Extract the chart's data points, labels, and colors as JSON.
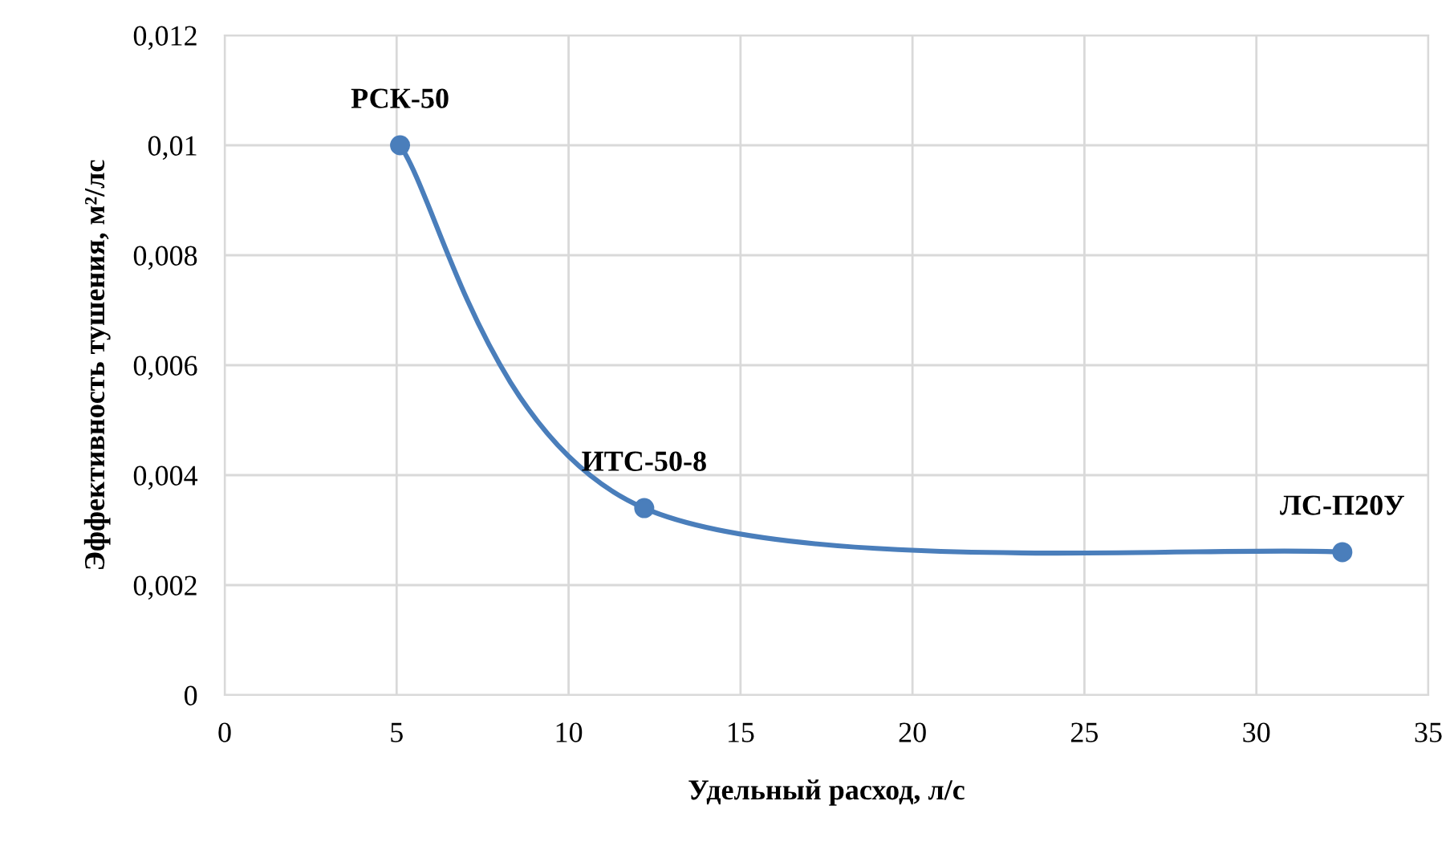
{
  "chart_data": {
    "type": "line",
    "xlabel": "Удельный расход, л/с",
    "ylabel": "Эффективность тушения, м²/лс",
    "x": [
      5.1,
      12.2,
      32.5
    ],
    "series": [
      {
        "color": "#4a7ebb",
        "values": [
          0.01,
          0.0034,
          0.0026
        ]
      }
    ],
    "marker": "circle",
    "line_style": "solid",
    "grid": true,
    "xlim": [
      0,
      35
    ],
    "xticks": [
      0,
      5,
      10,
      15,
      20,
      25,
      30,
      35
    ],
    "ylim": [
      0,
      0.012
    ],
    "yticks": [
      0,
      {
        "value": 0.002,
        "label": "0,002"
      },
      {
        "value": 0.004,
        "label": "0,004"
      },
      {
        "value": 0.006,
        "label": "0,006"
      },
      {
        "value": 0.008,
        "label": "0,008"
      },
      {
        "value": 0.01,
        "label": "0,01"
      },
      {
        "value": 0.012,
        "label": "0,012"
      }
    ],
    "annotations": [
      {
        "text": "РСК-50",
        "x": 5.1,
        "y": 0.01
      },
      {
        "text": "ИТС-50-8",
        "x": 12.2,
        "y": 0.0034
      },
      {
        "text": "ЛС-П20У",
        "x": 32.5,
        "y": 0.0026
      }
    ]
  }
}
